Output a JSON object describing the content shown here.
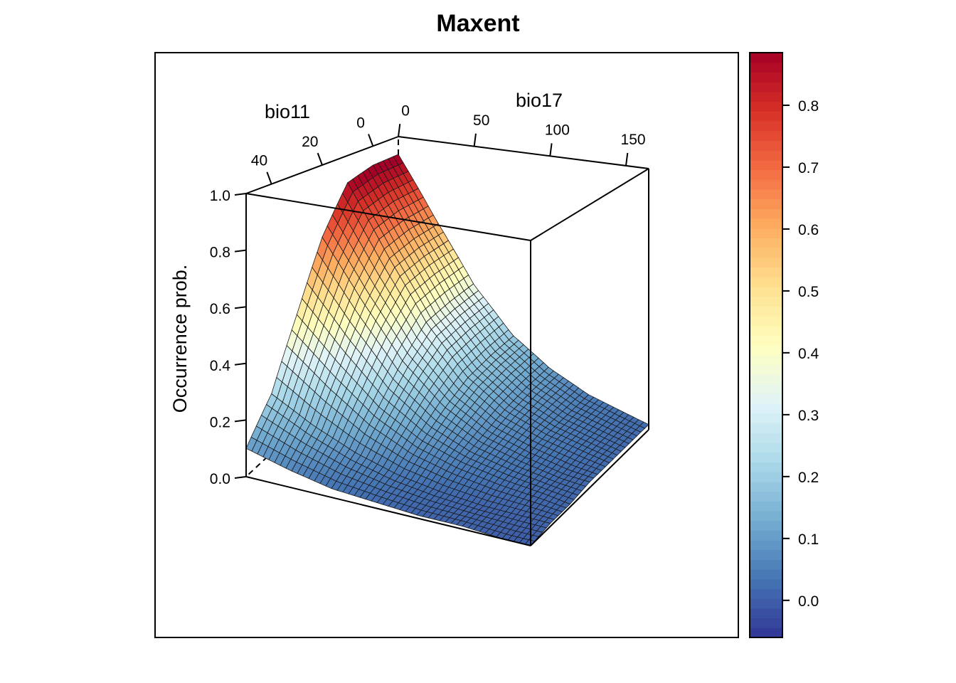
{
  "chart_data": {
    "type": "surface3d",
    "title": "Maxent",
    "axes": {
      "x": {
        "label": "bio11",
        "range": [
          -10,
          50
        ],
        "ticks": [
          0,
          20,
          40
        ]
      },
      "y": {
        "label": "bio17",
        "range": [
          0,
          165
        ],
        "ticks": [
          0,
          50,
          100,
          150
        ]
      },
      "z": {
        "label": "Occurrence prob.",
        "range": [
          0,
          1
        ],
        "ticks": [
          "0.0",
          "0.2",
          "0.4",
          "0.6",
          "0.8",
          "1.0"
        ]
      }
    },
    "surface": {
      "bio11_values": [
        -10,
        0,
        10,
        20,
        30,
        40,
        50
      ],
      "bio17_values": [
        0,
        25,
        50,
        75,
        100,
        125,
        150,
        165
      ],
      "z": [
        [
          0.91,
          0.62,
          0.36,
          0.19,
          0.1,
          0.05,
          0.03,
          0.02
        ],
        [
          0.91,
          0.62,
          0.36,
          0.19,
          0.1,
          0.05,
          0.03,
          0.02
        ],
        [
          0.88,
          0.6,
          0.35,
          0.18,
          0.09,
          0.05,
          0.03,
          0.02
        ],
        [
          0.7,
          0.47,
          0.27,
          0.14,
          0.07,
          0.04,
          0.02,
          0.02
        ],
        [
          0.45,
          0.3,
          0.17,
          0.09,
          0.05,
          0.03,
          0.02,
          0.01
        ],
        [
          0.22,
          0.14,
          0.08,
          0.04,
          0.02,
          0.01,
          0.01,
          0.01
        ],
        [
          0.1,
          0.06,
          0.03,
          0.02,
          0.01,
          0.01,
          0.0,
          0.0
        ]
      ]
    },
    "colorbar": {
      "range": [
        -0.06,
        0.885
      ],
      "ticks": [
        "0.0",
        "0.1",
        "0.2",
        "0.3",
        "0.4",
        "0.5",
        "0.6",
        "0.7",
        "0.8"
      ],
      "palette": [
        "#313695",
        "#4575b4",
        "#74add1",
        "#abd9e9",
        "#e0f3f8",
        "#ffffbf",
        "#fee090",
        "#fdae61",
        "#f46d43",
        "#d73027",
        "#a50026"
      ]
    },
    "grid": false,
    "legend": "colorbar-right"
  }
}
